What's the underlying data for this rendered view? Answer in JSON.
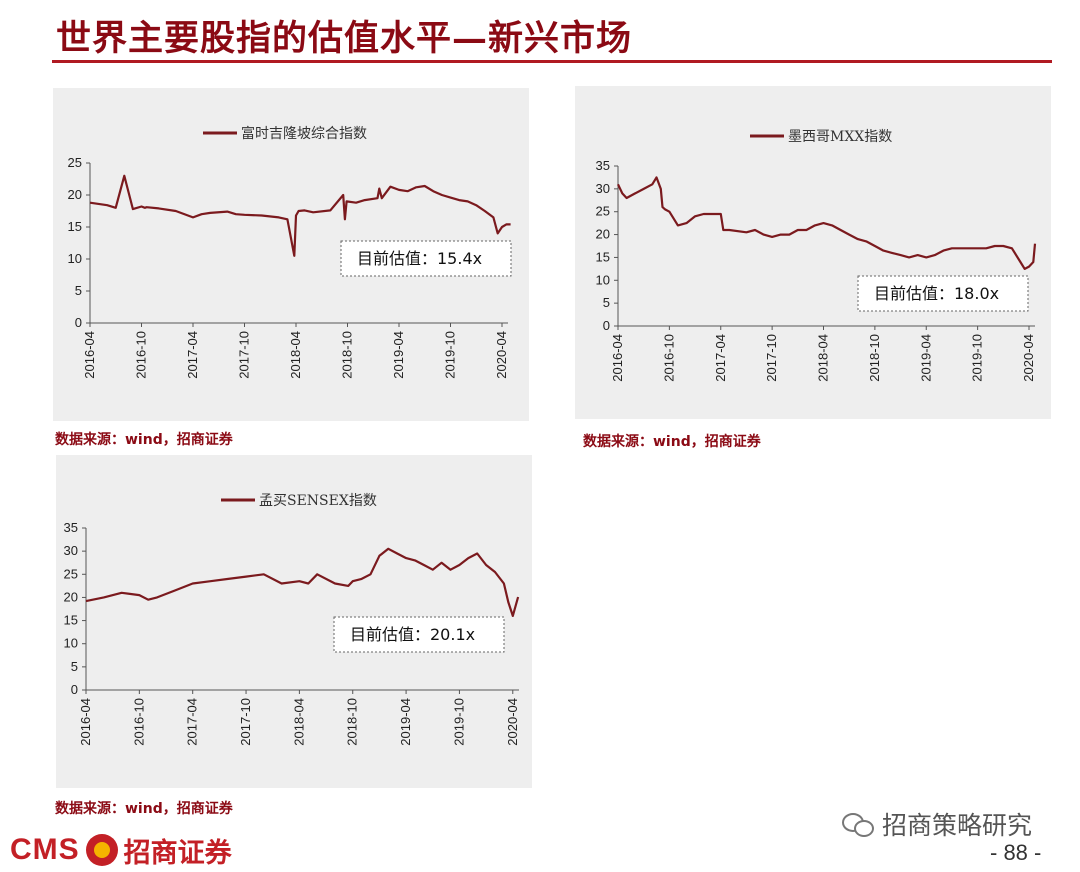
{
  "page": {
    "title": "世界主要股指的估值水平—新兴市场",
    "page_number": "- 88 -"
  },
  "footer": {
    "brand_latin": "CMS",
    "brand_cn": "招商证券",
    "wechat_account": "招商策略研究"
  },
  "colors": {
    "accent": "#8b0a14",
    "line": "#7b1a1e",
    "panel_bg": "#eeeeee"
  },
  "chart_data": [
    {
      "type": "line",
      "legend": "富时吉隆坡综合指数",
      "source": "数据来源：wind，招商证券",
      "annotation": "目前估值：15.4x",
      "ylim": [
        0,
        25
      ],
      "yticks": [
        "0",
        "5",
        "10",
        "15",
        "20",
        "25"
      ],
      "xticks": [
        "2016-04",
        "2016-10",
        "2017-04",
        "2017-10",
        "2018-04",
        "2018-10",
        "2019-04",
        "2019-10",
        "2020-04"
      ],
      "series": [
        {
          "x": [
            0,
            2,
            3,
            4,
            5,
            6,
            6.4,
            6.6,
            8,
            10,
            12,
            13,
            14,
            16,
            17,
            18,
            20,
            22,
            23,
            23.8,
            24,
            24.3,
            25,
            26,
            28,
            29.5,
            29.7,
            29.9,
            31,
            32,
            33.5,
            33.7,
            34,
            35,
            36,
            37,
            38,
            39,
            40,
            41,
            42,
            43,
            44,
            45,
            46,
            47,
            47.5,
            48,
            48.5,
            49
          ],
          "y": [
            18.8,
            18.4,
            18.0,
            23.0,
            17.8,
            18.2,
            18.0,
            18.1,
            17.9,
            17.5,
            16.5,
            17.0,
            17.2,
            17.4,
            17.0,
            16.9,
            16.8,
            16.5,
            16.2,
            10.5,
            16.8,
            17.5,
            17.6,
            17.3,
            17.6,
            20.0,
            16.2,
            19.0,
            18.8,
            19.2,
            19.5,
            21.0,
            19.5,
            21.3,
            20.8,
            20.6,
            21.2,
            21.4,
            20.6,
            20.0,
            19.6,
            19.2,
            19.0,
            18.4,
            17.5,
            16.5,
            14.0,
            15.0,
            15.4,
            15.4
          ]
        }
      ]
    },
    {
      "type": "line",
      "legend": "墨西哥MXX指数",
      "source": "数据来源：wind，招商证券",
      "annotation": "目前估值：18.0x",
      "ylim": [
        0,
        35
      ],
      "yticks": [
        "0",
        "5",
        "10",
        "15",
        "20",
        "25",
        "30",
        "35"
      ],
      "xticks": [
        "2016-04",
        "2016-10",
        "2017-04",
        "2017-10",
        "2018-04",
        "2018-10",
        "2019-04",
        "2019-10",
        "2020-04"
      ],
      "series": [
        {
          "x": [
            0,
            0.5,
            1,
            2,
            3,
            4,
            4.5,
            5,
            5.2,
            5.5,
            6,
            7,
            8,
            9,
            10,
            11,
            12,
            12.3,
            13,
            15,
            16,
            17,
            18,
            19,
            20,
            21,
            22,
            23,
            24,
            25,
            26,
            27,
            28,
            29,
            30,
            31,
            32,
            33,
            34,
            35,
            36,
            37,
            38,
            39,
            40,
            41,
            42,
            43,
            44,
            45,
            46,
            47,
            47.5,
            48,
            48.5,
            48.7
          ],
          "y": [
            31,
            29,
            28,
            29,
            30,
            31,
            32.5,
            30,
            26,
            25.5,
            25,
            22,
            22.5,
            24,
            24.5,
            24.5,
            24.5,
            21,
            21,
            20.5,
            21.0,
            20.0,
            19.5,
            20.0,
            20.0,
            21.0,
            21.0,
            22.0,
            22.5,
            22.0,
            21.0,
            20.0,
            19.0,
            18.5,
            17.5,
            16.5,
            16.0,
            15.5,
            15.0,
            15.5,
            15.0,
            15.5,
            16.5,
            17.0,
            17.0,
            17.0,
            17.0,
            17.0,
            17.5,
            17.5,
            17.0,
            14.0,
            12.5,
            13.0,
            14.0,
            18.0
          ]
        }
      ]
    },
    {
      "type": "line",
      "legend": "孟买SENSEX指数",
      "source": "数据来源：wind，招商证券",
      "annotation": "目前估值：20.1x",
      "ylim": [
        0,
        35
      ],
      "yticks": [
        "0",
        "5",
        "10",
        "15",
        "20",
        "25",
        "30",
        "35"
      ],
      "xticks": [
        "2016-04",
        "2016-10",
        "2017-04",
        "2017-10",
        "2018-04",
        "2018-10",
        "2019-04",
        "2019-10",
        "2020-04"
      ],
      "series": [
        {
          "x": [
            0,
            2,
            4,
            6,
            7,
            8,
            10,
            12,
            14,
            16,
            18,
            20,
            22,
            24,
            25,
            26,
            28,
            29.5,
            30,
            31,
            32,
            33,
            34,
            35,
            36,
            37,
            38,
            39,
            40,
            41,
            42,
            43,
            44,
            45,
            46,
            47,
            47.5,
            48,
            48.6
          ],
          "y": [
            19.2,
            20.0,
            21.0,
            20.5,
            19.5,
            20.0,
            21.5,
            23.0,
            23.5,
            24.0,
            24.5,
            25.0,
            23.0,
            23.5,
            23.0,
            25.0,
            23.0,
            22.5,
            23.5,
            24.0,
            25.0,
            29.0,
            30.5,
            29.5,
            28.5,
            28.0,
            27.0,
            26.0,
            27.5,
            26.0,
            27.0,
            28.5,
            29.5,
            27.0,
            25.5,
            23.0,
            19.0,
            16.0,
            20.1
          ]
        }
      ]
    }
  ]
}
